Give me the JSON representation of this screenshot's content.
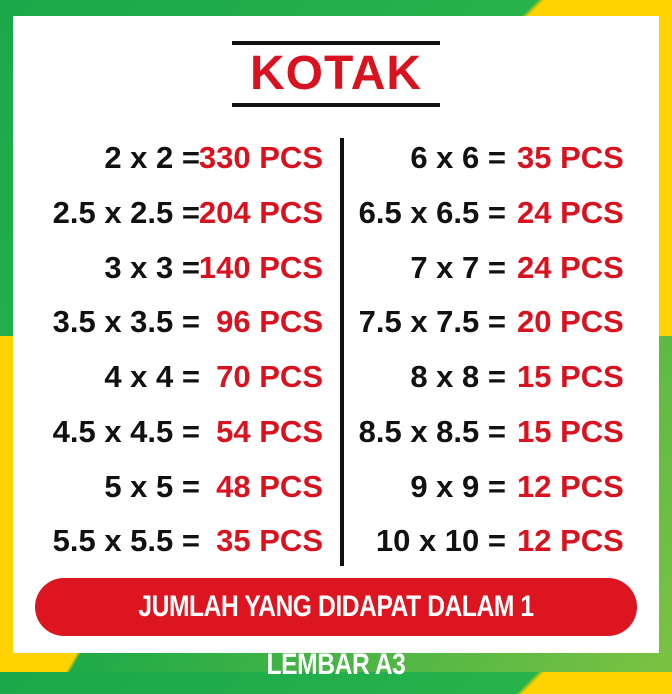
{
  "title": "KOTAK",
  "left": [
    {
      "size": "2 x 2 =",
      "qty": "330 PCS"
    },
    {
      "size": "2.5 x 2.5 =",
      "qty": "204 PCS"
    },
    {
      "size": "3 x 3 =",
      "qty": "140 PCS"
    },
    {
      "size": "3.5 x 3.5 =",
      "qty": "96 PCS"
    },
    {
      "size": "4 x 4 =",
      "qty": "70 PCS"
    },
    {
      "size": "4.5 x 4.5 =",
      "qty": "54 PCS"
    },
    {
      "size": "5 x 5 =",
      "qty": "48 PCS"
    },
    {
      "size": "5.5 x 5.5 =",
      "qty": "35 PCS"
    }
  ],
  "right": [
    {
      "size": "6 x 6 =",
      "qty": "35 PCS"
    },
    {
      "size": "6.5 x 6.5 =",
      "qty": "24 PCS"
    },
    {
      "size": "7 x 7 =",
      "qty": "24 PCS"
    },
    {
      "size": "7.5 x 7.5 =",
      "qty": "20 PCS"
    },
    {
      "size": "8 x 8 =",
      "qty": "15 PCS"
    },
    {
      "size": "8.5 x 8.5 =",
      "qty": "15 PCS"
    },
    {
      "size": "9 x 9 =",
      "qty": "12 PCS"
    },
    {
      "size": "10 x 10 =",
      "qty": "12 PCS"
    }
  ],
  "footer": "JUMLAH YANG DIDAPAT DALAM 1 LEMBAR A3",
  "colors": {
    "red": "#d9121f",
    "green": "#1faa48",
    "yellow": "#ffd200"
  }
}
